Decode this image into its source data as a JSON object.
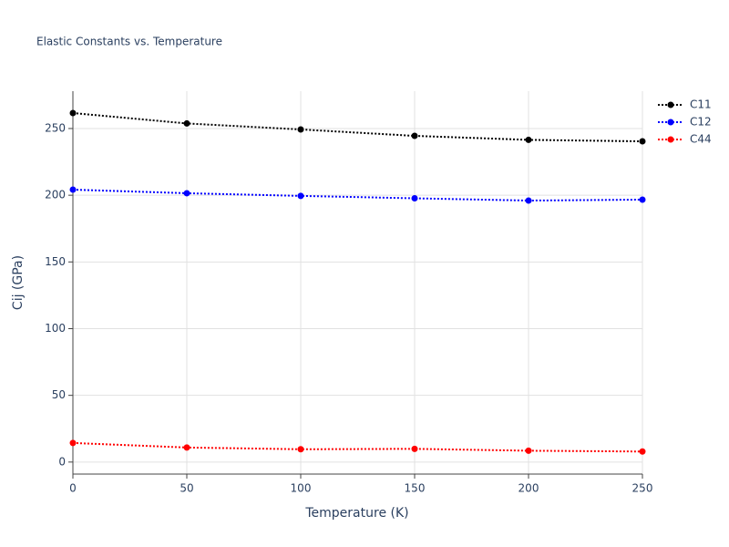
{
  "chart_data": {
    "type": "line",
    "title": "Elastic Constants vs. Temperature",
    "x_label": "Temperature (K)",
    "y_label": "Cij (GPa)",
    "x": [
      0,
      50,
      100,
      150,
      200,
      250
    ],
    "series": [
      {
        "name": "C11",
        "color": "#000000",
        "values": [
          261.6,
          253.8,
          249.3,
          244.5,
          241.5,
          240.4
        ]
      },
      {
        "name": "C12",
        "color": "#0000ff",
        "values": [
          204.2,
          201.5,
          199.5,
          197.7,
          196.0,
          196.7
        ]
      },
      {
        "name": "C44",
        "color": "#ff0000",
        "values": [
          14.3,
          10.9,
          9.6,
          9.9,
          8.5,
          7.9
        ]
      }
    ],
    "xlim": [
      0,
      250
    ],
    "xticks": [
      0,
      50,
      100,
      150,
      200,
      250
    ],
    "ylim": [
      -9,
      278
    ],
    "yticks": [
      0,
      50,
      100,
      150,
      200,
      250
    ],
    "grid": true,
    "legend": "top-right"
  }
}
